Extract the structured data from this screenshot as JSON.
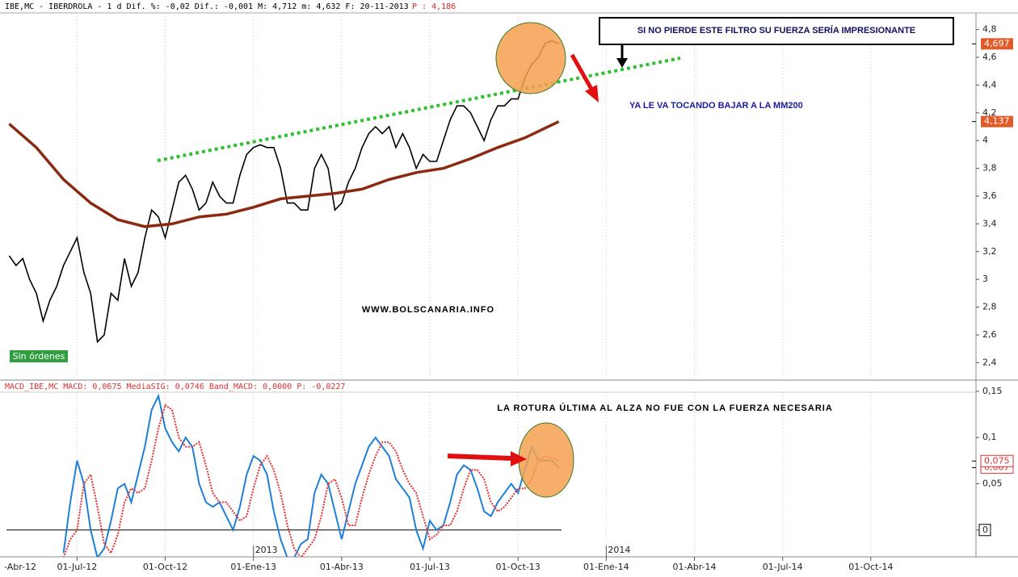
{
  "chart_data": [
    {
      "type": "line",
      "header": "IBE,MC - IBERDROLA -  1 d Dif. %: -0,02 Dif.: -0,001 M: 4,712 m: 4,632 F: 20-11-2013",
      "header_price": "P : 4,186",
      "annotations": [
        "SI NO PIERDE ESTE FILTRO SU FUERZA SERÍA IMPRESIONANTE",
        "YA LE VA TOCANDO BAJAR A LA MM200",
        "WWW.BOLSCANARIA.INFO"
      ],
      "status": "Sin órdenes",
      "xlim": [
        -11,
        132.5
      ],
      "ylim": [
        2.28,
        4.92
      ],
      "yticks": [
        {
          "value": 2.4,
          "label": "2,4"
        },
        {
          "value": 2.6,
          "label": "2,6"
        },
        {
          "value": 2.8,
          "label": "2,8"
        },
        {
          "value": 3,
          "label": "3"
        },
        {
          "value": 3.2,
          "label": "3,2"
        },
        {
          "value": 3.4,
          "label": "3,4"
        },
        {
          "value": 3.6,
          "label": "3,6"
        },
        {
          "value": 3.8,
          "label": "3,8"
        },
        {
          "value": 4,
          "label": "4"
        },
        {
          "value": 4.2,
          "label": "4,2"
        },
        {
          "value": 4.4,
          "label": "4,4"
        },
        {
          "value": 4.6,
          "label": "4,6"
        },
        {
          "value": 4.8,
          "label": "4,8"
        }
      ],
      "series": [
        {
          "color": "#000000",
          "end_label": "4,697",
          "x": [
            -10,
            -9,
            -8,
            -7,
            -6,
            -5,
            -4,
            -3,
            -2,
            -1,
            0,
            1,
            2,
            3,
            4,
            5,
            6,
            7,
            8,
            9,
            10,
            11,
            12,
            13,
            14,
            15,
            16,
            17,
            18,
            19,
            20,
            21,
            22,
            23,
            24,
            25,
            26,
            27,
            28,
            29,
            30,
            31,
            32,
            33,
            34,
            35,
            36,
            37,
            38,
            39,
            40,
            41,
            42,
            43,
            44,
            45,
            46,
            47,
            48,
            49,
            50,
            51,
            52,
            53,
            54,
            55,
            56,
            57,
            58,
            59,
            60,
            61,
            62,
            63,
            64,
            65,
            66,
            67,
            68,
            69,
            70,
            71
          ],
          "values": [
            3.17,
            3.1,
            3.15,
            3.0,
            2.9,
            2.7,
            2.85,
            2.95,
            3.1,
            3.2,
            3.3,
            3.05,
            2.9,
            2.55,
            2.6,
            2.9,
            2.85,
            3.15,
            2.95,
            3.05,
            3.3,
            3.5,
            3.45,
            3.3,
            3.5,
            3.7,
            3.75,
            3.65,
            3.5,
            3.55,
            3.7,
            3.6,
            3.55,
            3.55,
            3.75,
            3.9,
            3.95,
            3.97,
            3.95,
            3.95,
            3.8,
            3.55,
            3.55,
            3.5,
            3.5,
            3.8,
            3.9,
            3.8,
            3.5,
            3.55,
            3.7,
            3.8,
            3.95,
            4.05,
            4.1,
            4.05,
            4.1,
            3.95,
            4.05,
            3.95,
            3.8,
            3.9,
            3.85,
            3.85,
            4.0,
            4.15,
            4.25,
            4.25,
            4.2,
            4.1,
            4.0,
            4.15,
            4.25,
            4.25,
            4.3,
            4.3,
            4.45,
            4.55,
            4.6,
            4.7,
            4.72,
            4.697
          ]
        },
        {
          "color": "#8b2a10",
          "end_label": "4,137",
          "x": [
            -10,
            -6,
            -2,
            2,
            6,
            10,
            14,
            18,
            22,
            26,
            30,
            34,
            38,
            42,
            46,
            50,
            54,
            58,
            62,
            66,
            71
          ],
          "values": [
            4.12,
            3.95,
            3.72,
            3.55,
            3.43,
            3.38,
            3.4,
            3.45,
            3.47,
            3.52,
            3.58,
            3.6,
            3.62,
            3.65,
            3.72,
            3.77,
            3.8,
            3.87,
            3.95,
            4.02,
            4.137
          ]
        }
      ]
    },
    {
      "type": "line",
      "header": "MACD_IBE,MC MACD: 0,0675 MediaSIG: 0,0746 Band_MACD: 0,0000 P: -0,0227",
      "annotations": [
        "LA ROTURA ÚLTIMA AL ALZA NO FUE CON LA FUERZA NECESARIA"
      ],
      "xlim": [
        -11,
        132.5
      ],
      "ylim": [
        -0.029,
        0.149
      ],
      "yticks": [
        {
          "value": 0,
          "label": "0"
        },
        {
          "value": 0.05,
          "label": "0,05"
        },
        {
          "value": 0.1,
          "label": "0,1"
        },
        {
          "value": 0.15,
          "label": "0,15"
        }
      ],
      "xticks": [
        {
          "value": -13,
          "label": "-Abr-12"
        },
        {
          "value": 0,
          "label": "01-Jul-12"
        },
        {
          "value": 13,
          "label": "01-Oct-12"
        },
        {
          "value": 26,
          "label": "01-Ene-13"
        },
        {
          "value": 39,
          "label": "01-Abr-13"
        },
        {
          "value": 52,
          "label": "01-Jul-13"
        },
        {
          "value": 65,
          "label": "01-Oct-13"
        },
        {
          "value": 78,
          "label": "01-Ene-14"
        },
        {
          "value": 91,
          "label": "01-Abr-14"
        },
        {
          "value": 104,
          "label": "01-Jul-14"
        },
        {
          "value": 117,
          "label": "01-Oct-14"
        }
      ],
      "year_labels": [
        {
          "value": 26,
          "label": "2013"
        },
        {
          "value": 78,
          "label": "2014"
        }
      ],
      "series": [
        {
          "color": "#1e7fd8",
          "end_label": "0,067",
          "x": [
            -2,
            -1,
            0,
            1,
            2,
            3,
            4,
            5,
            6,
            7,
            8,
            9,
            10,
            11,
            12,
            13,
            14,
            15,
            16,
            17,
            18,
            19,
            20,
            21,
            22,
            23,
            24,
            25,
            26,
            27,
            28,
            29,
            30,
            31,
            32,
            33,
            34,
            35,
            36,
            37,
            38,
            39,
            40,
            41,
            42,
            43,
            44,
            45,
            46,
            47,
            48,
            49,
            50,
            51,
            52,
            53,
            54,
            55,
            56,
            57,
            58,
            59,
            60,
            61,
            62,
            63,
            64,
            65,
            66,
            67,
            68,
            69,
            70,
            71
          ],
          "values": [
            -0.025,
            0.03,
            0.075,
            0.05,
            0.0,
            -0.03,
            -0.02,
            0.01,
            0.045,
            0.05,
            0.03,
            0.06,
            0.09,
            0.13,
            0.145,
            0.11,
            0.095,
            0.085,
            0.1,
            0.09,
            0.05,
            0.03,
            0.025,
            0.03,
            0.015,
            0.0,
            0.025,
            0.06,
            0.08,
            0.075,
            0.06,
            0.02,
            -0.01,
            -0.03,
            -0.03,
            -0.015,
            -0.01,
            0.04,
            0.06,
            0.05,
            0.02,
            -0.01,
            0.02,
            0.05,
            0.07,
            0.09,
            0.1,
            0.09,
            0.08,
            0.055,
            0.045,
            0.035,
            0.0,
            -0.02,
            0.01,
            0.0,
            0.005,
            0.03,
            0.06,
            0.07,
            0.065,
            0.045,
            0.02,
            0.015,
            0.03,
            0.04,
            0.05,
            0.04,
            0.065,
            0.09,
            0.075,
            0.075,
            0.075,
            0.0675
          ]
        },
        {
          "color": "#e83030",
          "end_label": "0,075",
          "x": [
            -2,
            -1,
            0,
            1,
            2,
            3,
            4,
            5,
            6,
            7,
            8,
            9,
            10,
            11,
            12,
            13,
            14,
            15,
            16,
            17,
            18,
            19,
            20,
            21,
            22,
            23,
            24,
            25,
            26,
            27,
            28,
            29,
            30,
            31,
            32,
            33,
            34,
            35,
            36,
            37,
            38,
            39,
            40,
            41,
            42,
            43,
            44,
            45,
            46,
            47,
            48,
            49,
            50,
            51,
            52,
            53,
            54,
            55,
            56,
            57,
            58,
            59,
            60,
            61,
            62,
            63,
            64,
            65,
            66,
            67,
            68,
            69,
            70,
            71
          ],
          "values": [
            -0.03,
            -0.01,
            0.0,
            0.05,
            0.06,
            0.025,
            -0.015,
            -0.025,
            -0.005,
            0.03,
            0.045,
            0.04,
            0.045,
            0.075,
            0.11,
            0.135,
            0.13,
            0.1,
            0.09,
            0.09,
            0.095,
            0.07,
            0.04,
            0.03,
            0.03,
            0.02,
            0.01,
            0.015,
            0.045,
            0.07,
            0.08,
            0.065,
            0.04,
            0.005,
            -0.02,
            -0.03,
            -0.02,
            -0.01,
            0.015,
            0.05,
            0.055,
            0.035,
            0.005,
            0.005,
            0.035,
            0.06,
            0.08,
            0.095,
            0.095,
            0.085,
            0.065,
            0.05,
            0.04,
            0.015,
            -0.01,
            -0.005,
            0.005,
            0.005,
            0.02,
            0.045,
            0.065,
            0.065,
            0.055,
            0.03,
            0.02,
            0.025,
            0.035,
            0.045,
            0.045,
            0.055,
            0.075,
            0.08,
            0.078,
            0.0746
          ]
        }
      ]
    }
  ]
}
